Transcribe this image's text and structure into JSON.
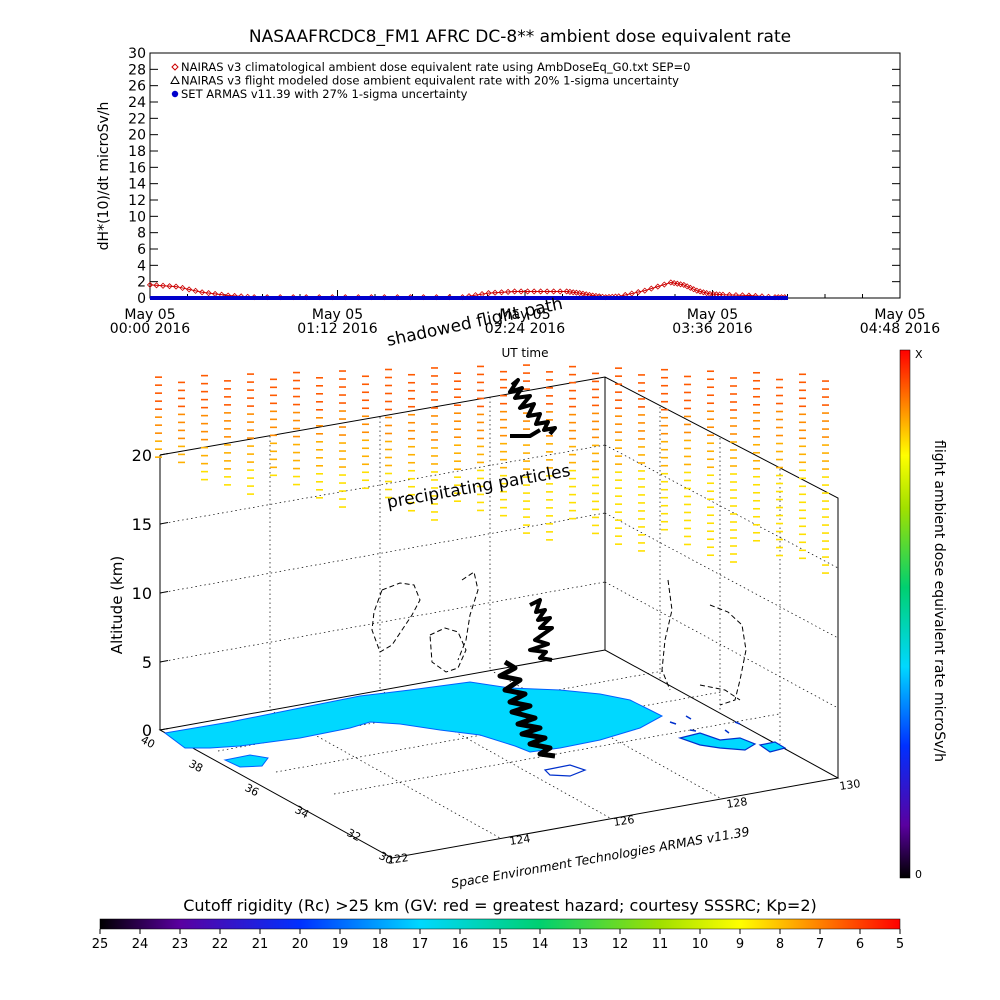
{
  "chart_data": [
    {
      "type": "line",
      "title": "NASAAFRCDC8_FM1 AFRC DC-8** ambient dose equivalent rate",
      "ylabel": "dH*(10)/dt microSv/h",
      "xlabel": "UT time",
      "ylim": [
        0,
        30
      ],
      "yticks": [
        "0",
        "2",
        "4",
        "6",
        "8",
        "10",
        "12",
        "14",
        "16",
        "18",
        "20",
        "22",
        "24",
        "26",
        "28",
        "30"
      ],
      "xticks": [
        {
          "line1": "May 05",
          "line2": "00:00 2016"
        },
        {
          "line1": "May 05",
          "line2": "01:12 2016"
        },
        {
          "line1": "May 05",
          "line2": "02:24 2016"
        },
        {
          "line1": "May 05",
          "line2": "03:36 2016"
        },
        {
          "line1": "May 05",
          "line2": "04:48 2016"
        }
      ],
      "xlim_minutes": [
        0,
        288
      ],
      "legend_position": "top-left",
      "series": [
        {
          "name": "NAIRAS v3 climatological ambient dose equivalent rate using AmbDoseEq_G0.txt SEP=0",
          "color": "#cc0000",
          "marker": "diamond",
          "x": [
            0,
            10,
            20,
            30,
            40,
            60,
            80,
            100,
            120,
            130,
            140,
            150,
            160,
            165,
            170,
            175,
            180,
            190,
            200,
            205,
            210,
            215,
            220,
            230,
            240,
            245
          ],
          "y": [
            1.6,
            1.4,
            0.7,
            0.3,
            0.1,
            0.1,
            0.1,
            0.1,
            0.1,
            0.6,
            0.8,
            0.8,
            0.8,
            0.6,
            0.3,
            0.1,
            0.2,
            0.9,
            1.9,
            1.6,
            0.9,
            0.5,
            0.4,
            0.3,
            0.1,
            0.1
          ]
        },
        {
          "name": "NAIRAS v3 flight modeled dose ambient equivalent rate with 20% 1-sigma uncertainty",
          "color": "#000000",
          "marker": "triangle",
          "x": [
            0,
            245
          ],
          "y": [
            0.05,
            0.05
          ]
        },
        {
          "name": "SET ARMAS v11.39 with 27% 1-sigma uncertainty",
          "color": "#0000cc",
          "marker": "circle",
          "x": [
            0,
            245
          ],
          "y": [
            0.0,
            0.0
          ]
        }
      ]
    },
    {
      "type": "scatter",
      "ylabel": "Altitude (km)",
      "zticks": [
        "0",
        "5",
        "10",
        "15",
        "20"
      ],
      "lat_ticks": [
        "40",
        "38",
        "36",
        "34",
        "32",
        "30"
      ],
      "lon_ticks": [
        "122",
        "124",
        "126",
        "128",
        "130"
      ],
      "annotations": [
        "shadowed flight path",
        "precipitating particles",
        "Space Environment Technologies ARMAS v11.39"
      ],
      "colorbar_label": "flight ambient dose equivalent rate microSv/h",
      "colorbar_top": "X",
      "colorbar_bottom": "0"
    }
  ],
  "bottom_colorbar": {
    "title": "Cutoff rigidity (Rc) >25 km (GV: red = greatest hazard; courtesy SSSRC; Kp=2)",
    "ticks": [
      "25",
      "24",
      "23",
      "22",
      "21",
      "20",
      "19",
      "18",
      "17",
      "16",
      "15",
      "14",
      "13",
      "12",
      "11",
      "10",
      "9",
      "8",
      "7",
      "6",
      "5"
    ]
  }
}
